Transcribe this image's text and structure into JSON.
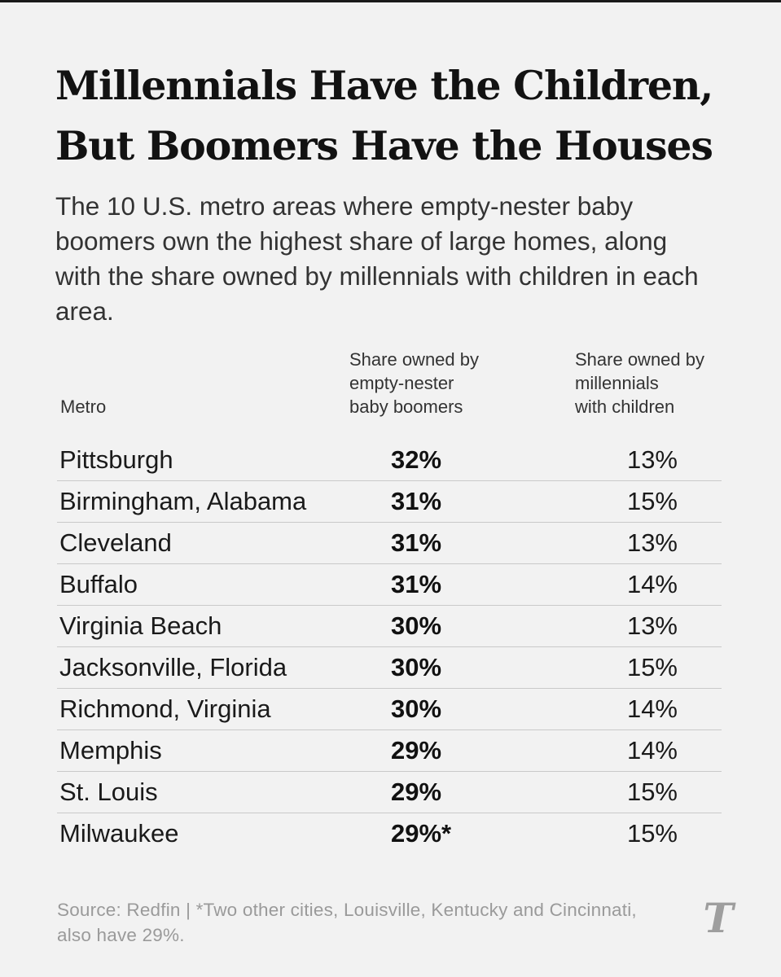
{
  "headline": {
    "line1": "Millennials Have the Children,",
    "line2": "But Boomers Have the Houses"
  },
  "subhead": "The 10 U.S. metro areas where empty-nester baby boomers own the highest share of large homes, along with the share owned by millennials with children in each area.",
  "chart_data": {
    "type": "table",
    "title": "Millennials Have the Children, But Boomers Have the Houses",
    "columns": [
      "Metro",
      "Share owned by\nempty-nester\nbaby boomers",
      "Share owned by\nmillennials\nwith children"
    ],
    "rows": [
      {
        "metro": "Pittsburgh",
        "boomers": "32%",
        "millennials": "13%"
      },
      {
        "metro": "Birmingham, Alabama",
        "boomers": "31%",
        "millennials": "15%"
      },
      {
        "metro": "Cleveland",
        "boomers": "31%",
        "millennials": "13%"
      },
      {
        "metro": "Buffalo",
        "boomers": "31%",
        "millennials": "14%"
      },
      {
        "metro": "Virginia Beach",
        "boomers": "30%",
        "millennials": "13%"
      },
      {
        "metro": "Jacksonville, Florida",
        "boomers": "30%",
        "millennials": "15%"
      },
      {
        "metro": "Richmond, Virginia",
        "boomers": "30%",
        "millennials": "14%"
      },
      {
        "metro": "Memphis",
        "boomers": "29%",
        "millennials": "14%"
      },
      {
        "metro": "St. Louis",
        "boomers": "29%",
        "millennials": "15%"
      },
      {
        "metro": "Milwaukee",
        "boomers": "29%*",
        "millennials": "15%"
      }
    ]
  },
  "footer": {
    "source": "Source: Redfin | *Two other cities, Louisville, Kentucky and Cincinnati, also have 29%.",
    "logo": "T",
    "logo_icon": "nyt-logo-icon"
  },
  "colors": {
    "background": "#f2f2f2",
    "text": "#1a1a1a",
    "muted": "#9a9a9a",
    "rule": "#c9c9c9"
  }
}
